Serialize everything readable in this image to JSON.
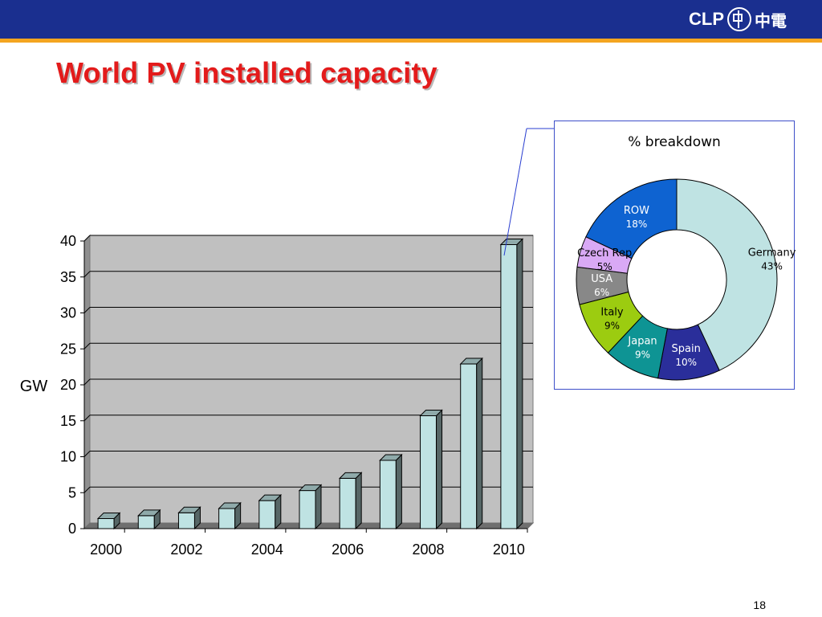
{
  "logo": {
    "text": "CLP",
    "chinese": "中電",
    "icon": "clp-circle-logo"
  },
  "slide": {
    "title": "World PV installed capacity",
    "page_number": "18"
  },
  "colors": {
    "top_bar": "#1a2f8f",
    "accent": "#f4a520",
    "title": "#e31b1b"
  },
  "chart_data": [
    {
      "type": "bar",
      "title": "",
      "xlabel": "",
      "ylabel": "GW",
      "categories": [
        "2000",
        "2001",
        "2002",
        "2003",
        "2004",
        "2005",
        "2006",
        "2007",
        "2008",
        "2009",
        "2010"
      ],
      "x_tick_labels": [
        "2000",
        "2002",
        "2004",
        "2006",
        "2008",
        "2010"
      ],
      "values": [
        1.4,
        1.8,
        2.2,
        2.8,
        3.9,
        5.3,
        7.0,
        9.5,
        15.7,
        22.9,
        39.5
      ],
      "ylim": [
        0,
        40
      ],
      "y_ticks": [
        0,
        5,
        10,
        15,
        20,
        25,
        30,
        35,
        40
      ],
      "grid": true,
      "colors": {
        "bar": "#bfe3e3",
        "plot_bg": "#c0c0c0"
      }
    },
    {
      "type": "pie",
      "title": "% breakdown",
      "labels": [
        "Germany",
        "Spain",
        "Japan",
        "Italy",
        "USA",
        "Czech Rep",
        "ROW"
      ],
      "values": [
        43,
        10,
        9,
        9,
        6,
        5,
        18
      ],
      "value_labels": [
        "43%",
        "10%",
        "9%",
        "9%",
        "6%",
        "5%",
        "18%"
      ],
      "colors": [
        "#bfe3e3",
        "#2a2e9a",
        "#0e9494",
        "#9ccc10",
        "#888888",
        "#d9a9f5",
        "#0e63d1"
      ],
      "label_colors": [
        "#000000",
        "#ffffff",
        "#ffffff",
        "#000000",
        "#ffffff",
        "#000000",
        "#ffffff"
      ],
      "donut": true
    }
  ]
}
